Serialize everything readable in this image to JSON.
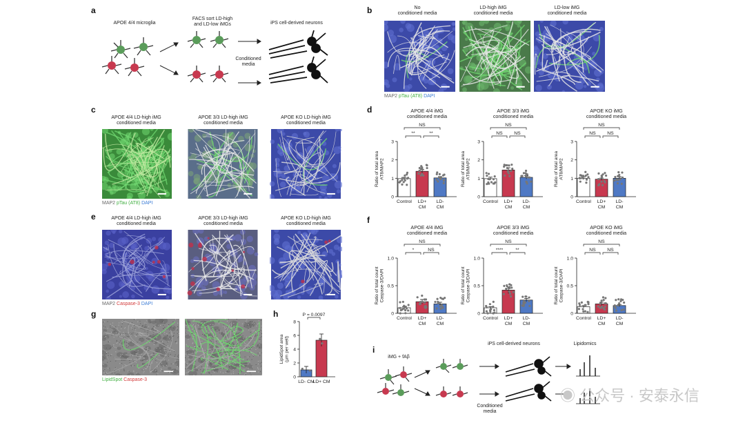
{
  "panel_labels": {
    "a": "a",
    "b": "b",
    "c": "c",
    "d": "d",
    "e": "e",
    "f": "f",
    "g": "g",
    "h": "h",
    "i": "i"
  },
  "panel_a": {
    "source": "APOE 4/4 microglia",
    "sort": "FACS sort LD-high\nand LD-low iMGs",
    "neurons": "iPS cell-derived neurons",
    "conditioned": "Conditioned\nmedia"
  },
  "panel_b": {
    "titles": [
      "No\nconditioned media",
      "LD-high iMG\nconditioned media",
      "LD-low iMG\nconditioned media"
    ],
    "legend": [
      "MAP2",
      "pTau (AT8)",
      "DAPI"
    ]
  },
  "panel_c": {
    "titles": [
      "APOE 4/4 LD-high iMG\nconditioned media",
      "APOE 3/3 LD-high iMG\nconditioned media",
      "APOE KO LD-high iMG\nconditioned media"
    ],
    "legend": [
      "MAP2",
      "pTau (AT8)",
      "DAPI"
    ]
  },
  "panel_e": {
    "titles": [
      "APOE 4/4 LD-high iMG\nconditioned media",
      "APOE 3/3 LD-high iMG\nconditioned media",
      "APOE KO LD-high iMG\nconditioned media"
    ],
    "legend": [
      "MAP2",
      "Caspase-3",
      "DAPI"
    ]
  },
  "panel_g": {
    "legend": [
      "LipidSpot",
      "Caspase-3"
    ]
  },
  "panel_i": {
    "treatment": "iMG + fAβ",
    "neurons": "iPS cell-derived neurons",
    "lipidomics": "Lipidomics",
    "conditioned": "Conditioned\nmedia"
  },
  "watermark": "公众号 · 安泰永信",
  "colors": {
    "control": "#ffffff",
    "ld_high": "#c7394f",
    "ld_low": "#4f79c4",
    "map2": "#d8d8d8",
    "ptau": "#4caf50",
    "dapi": "#3a4fb0",
    "casp": "#c0304a"
  },
  "chart_data": [
    {
      "id": "d1",
      "type": "bar",
      "title": "APOE 4/4 iMG\nconditioned media",
      "ylabel": "Ratio of total area\nAT8/MAP2",
      "ylim": [
        0,
        3
      ],
      "yticks": [
        0,
        1,
        2,
        3
      ],
      "categories": [
        "Control",
        "LD+\nCM",
        "LD-\nCM"
      ],
      "values": [
        0.98,
        1.38,
        1.02
      ],
      "errors": [
        0.07,
        0.09,
        0.07
      ],
      "sig": [
        {
          "from": 0,
          "to": 1,
          "label": "**",
          "level": 0
        },
        {
          "from": 1,
          "to": 2,
          "label": "**",
          "level": 0
        },
        {
          "from": 0,
          "to": 2,
          "label": "NS",
          "level": 1
        }
      ]
    },
    {
      "id": "d2",
      "type": "bar",
      "title": "APOE 3/3 iMG\nconditioned media",
      "ylabel": "Ratio of total area\nAT8/MAP2",
      "ylim": [
        0,
        3
      ],
      "yticks": [
        0,
        1,
        2,
        3
      ],
      "categories": [
        "Control",
        "LD+\nCM",
        "LD-\nCM"
      ],
      "values": [
        0.98,
        1.45,
        1.05
      ],
      "errors": [
        0.08,
        0.12,
        0.09
      ],
      "sig": [
        {
          "from": 0,
          "to": 1,
          "label": "NS",
          "level": 0
        },
        {
          "from": 1,
          "to": 2,
          "label": "NS",
          "level": 0
        },
        {
          "from": 0,
          "to": 2,
          "label": "NS",
          "level": 1
        }
      ]
    },
    {
      "id": "d3",
      "type": "bar",
      "title": "APOE KO iMG\nconditioned media",
      "ylabel": "Ratio of total area\nAT8/MAP2",
      "ylim": [
        0,
        3
      ],
      "yticks": [
        0,
        1,
        2,
        3
      ],
      "categories": [
        "Control",
        "LD+\nCM",
        "LD-\nCM"
      ],
      "values": [
        1.0,
        0.95,
        1.0
      ],
      "errors": [
        0.08,
        0.06,
        0.08
      ],
      "sig": [
        {
          "from": 0,
          "to": 1,
          "label": "NS",
          "level": 0
        },
        {
          "from": 1,
          "to": 2,
          "label": "NS",
          "level": 0
        },
        {
          "from": 0,
          "to": 2,
          "label": "NS",
          "level": 1
        }
      ]
    },
    {
      "id": "f1",
      "type": "bar",
      "title": "APOE 4/4 iMG\nconditioned media",
      "ylabel": "Ratio of total count\nCaspase-3/DAPI",
      "ylim": [
        0,
        1.0
      ],
      "yticks": [
        0,
        0.5,
        1.0
      ],
      "categories": [
        "Control",
        "LD+\nCM",
        "LD-\nCM"
      ],
      "values": [
        0.1,
        0.21,
        0.17
      ],
      "errors": [
        0.02,
        0.04,
        0.03
      ],
      "sig": [
        {
          "from": 0,
          "to": 1,
          "label": "*",
          "level": 0
        },
        {
          "from": 1,
          "to": 2,
          "label": "NS",
          "level": 0
        },
        {
          "from": 0,
          "to": 2,
          "label": "NS",
          "level": 1
        }
      ]
    },
    {
      "id": "f2",
      "type": "bar",
      "title": "APOE 3/3 iMG\nconditioned media",
      "ylabel": "Ratio of total count\nCaspase-3/DAPI",
      "ylim": [
        0,
        1.0
      ],
      "yticks": [
        0,
        0.5,
        1.0
      ],
      "categories": [
        "Control",
        "LD+\nCM",
        "LD-\nCM"
      ],
      "values": [
        0.1,
        0.42,
        0.24
      ],
      "errors": [
        0.02,
        0.06,
        0.03
      ],
      "sig": [
        {
          "from": 0,
          "to": 1,
          "label": "****",
          "level": 0
        },
        {
          "from": 1,
          "to": 2,
          "label": "**",
          "level": 0
        },
        {
          "from": 0,
          "to": 2,
          "label": "NS",
          "level": 1
        }
      ]
    },
    {
      "id": "f3",
      "type": "bar",
      "title": "APOE KO iMG\nconditioned media",
      "ylabel": "Ratio of total count\nCaspase-3/DAPI",
      "ylim": [
        0,
        1.0
      ],
      "yticks": [
        0,
        0.5,
        1.0
      ],
      "categories": [
        "Control",
        "LD+\nCM",
        "LD-\nCM"
      ],
      "values": [
        0.12,
        0.17,
        0.14
      ],
      "errors": [
        0.02,
        0.03,
        0.02
      ],
      "sig": [
        {
          "from": 0,
          "to": 1,
          "label": "NS",
          "level": 0
        },
        {
          "from": 1,
          "to": 2,
          "label": "NS",
          "level": 0
        },
        {
          "from": 0,
          "to": 2,
          "label": "NS",
          "level": 1
        }
      ]
    },
    {
      "id": "h",
      "type": "bar",
      "title": "",
      "ylabel": "LipidSpot area\n(µm per well)",
      "ylim": [
        0,
        8
      ],
      "yticks": [
        0,
        2,
        4,
        6,
        8
      ],
      "categories": [
        "LD- CM",
        "LD+ CM"
      ],
      "values": [
        1.0,
        5.3
      ],
      "errors": [
        0.5,
        0.9
      ],
      "sig": [
        {
          "from": 0,
          "to": 1,
          "label": "P = 0.0097",
          "level": 0
        }
      ]
    }
  ]
}
